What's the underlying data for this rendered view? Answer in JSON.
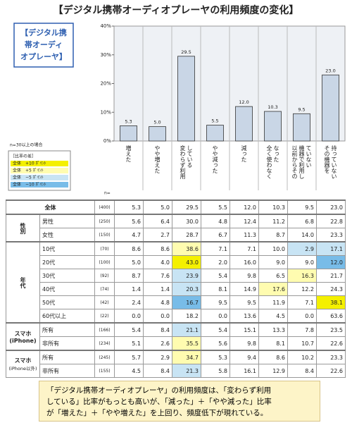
{
  "chart_data": {
    "type": "bar",
    "title": "【デジタル携帯オーディオプレーヤの利用頻度の変化】",
    "box_label": [
      "【デジタル携",
      "帯オーディ",
      "オプレーヤ】"
    ],
    "categories": [
      [
        "増えた"
      ],
      [
        "やや増えた"
      ],
      [
        "変わらず利用",
        "している"
      ],
      [
        "やや減った"
      ],
      [
        "減った"
      ],
      [
        "全く使わなく",
        "なった"
      ],
      [
        "以前からその",
        "機器で利用し",
        "ていない"
      ],
      [
        "その機器を",
        "持っていない"
      ]
    ],
    "values": [
      5.3,
      5.0,
      29.5,
      5.5,
      12.0,
      10.3,
      9.5,
      23.0
    ],
    "value_labels": [
      "5.3",
      "5.0",
      "29.5",
      "5.5",
      "12.0",
      "10.3",
      "9.5",
      "23.0"
    ],
    "color": "#c9d6e6",
    "ylim": [
      0,
      40
    ],
    "yticks": [
      {
        "value": 0,
        "label": "0%"
      },
      {
        "value": 10,
        "label": "10%"
      },
      {
        "value": 20,
        "label": "20%"
      },
      {
        "value": 30,
        "label": "30%"
      },
      {
        "value": 40,
        "label": "40%"
      }
    ],
    "n_label": "n=",
    "legend": {
      "note": "n=30以上の場合",
      "title": "［比率の差］",
      "items": [
        {
          "label": "全体　+10 ﾎﾟｲﾝﾄ",
          "color": "#f4f000"
        },
        {
          "label": "全体　+5 ﾎﾟｲﾝﾄ",
          "color": "#fffcb0"
        },
        {
          "label": "全体　−5 ﾎﾟｲﾝﾄ",
          "color": "#c8e4f4"
        },
        {
          "label": "全体　−10 ﾎﾟｲﾝﾄ",
          "color": "#78bce8"
        }
      ]
    }
  },
  "table": {
    "groups": [
      {
        "label": [
          "全体"
        ],
        "rows": [
          {
            "n": "(400)",
            "values": [
              "5.3",
              "5.0",
              "29.5",
              "5.5",
              "12.0",
              "10.3",
              "9.5",
              "23.0"
            ]
          }
        ]
      },
      {
        "label": [
          "性別"
        ],
        "rows": [
          {
            "label": "男性",
            "n": "(250)",
            "values": [
              "5.6",
              "6.4",
              "30.0",
              "4.8",
              "12.4",
              "11.2",
              "6.8",
              "22.8"
            ]
          },
          {
            "label": "女性",
            "n": "(150)",
            "values": [
              "4.7",
              "2.7",
              "28.7",
              "6.7",
              "11.3",
              "8.7",
              "14.0",
              "23.3"
            ]
          }
        ]
      },
      {
        "label": [
          "年代"
        ],
        "rows": [
          {
            "label": "10代",
            "n": "(70)",
            "values": [
              "8.6",
              "8.6",
              "38.6",
              "7.1",
              "7.1",
              "10.0",
              "2.9",
              "17.1"
            ],
            "highlight": [
              null,
              null,
              "#fffcb0",
              null,
              null,
              null,
              "#c8e4f4",
              "#c8e4f4"
            ]
          },
          {
            "label": "20代",
            "n": "(100)",
            "values": [
              "5.0",
              "4.0",
              "43.0",
              "2.0",
              "16.0",
              "9.0",
              "9.0",
              "12.0"
            ],
            "highlight": [
              null,
              null,
              "#f4f000",
              null,
              null,
              null,
              null,
              "#78bce8"
            ]
          },
          {
            "label": "30代",
            "n": "(92)",
            "values": [
              "8.7",
              "7.6",
              "23.9",
              "5.4",
              "9.8",
              "6.5",
              "16.3",
              "21.7"
            ],
            "highlight": [
              null,
              null,
              "#c8e4f4",
              null,
              null,
              null,
              "#fffcb0",
              null
            ]
          },
          {
            "label": "40代",
            "n": "(74)",
            "values": [
              "1.4",
              "1.4",
              "20.3",
              "8.1",
              "14.9",
              "17.6",
              "12.2",
              "24.3"
            ],
            "highlight": [
              null,
              null,
              "#c8e4f4",
              null,
              null,
              "#fffcb0",
              null,
              null
            ]
          },
          {
            "label": "50代",
            "n": "(42)",
            "values": [
              "2.4",
              "4.8",
              "16.7",
              "9.5",
              "9.5",
              "11.9",
              "7.1",
              "38.1"
            ],
            "highlight": [
              null,
              null,
              "#78bce8",
              null,
              null,
              null,
              null,
              "#f4f000"
            ]
          },
          {
            "label": "60代以上",
            "n": "(22)",
            "values": [
              "0.0",
              "0.0",
              "18.2",
              "0.0",
              "13.6",
              "4.5",
              "0.0",
              "63.6"
            ]
          }
        ]
      },
      {
        "label": [
          "スマホ(iPhone)"
        ],
        "rows": [
          {
            "label": "所有",
            "n": "(166)",
            "values": [
              "5.4",
              "8.4",
              "21.1",
              "5.4",
              "15.1",
              "13.3",
              "7.8",
              "23.5"
            ],
            "highlight": [
              null,
              null,
              "#c8e4f4",
              null,
              null,
              null,
              null,
              null
            ]
          },
          {
            "label": "非所有",
            "n": "(234)",
            "values": [
              "5.1",
              "2.6",
              "35.5",
              "5.6",
              "9.8",
              "8.1",
              "10.7",
              "22.6"
            ],
            "highlight": [
              null,
              null,
              "#fffcb0",
              null,
              null,
              null,
              null,
              null
            ]
          }
        ]
      },
      {
        "label": [
          "スマホ",
          "(iPhone以外)"
        ],
        "rows": [
          {
            "label": "所有",
            "n": "(245)",
            "values": [
              "5.7",
              "2.9",
              "34.7",
              "5.3",
              "9.4",
              "8.6",
              "10.2",
              "23.3"
            ],
            "highlight": [
              null,
              null,
              "#fffcb0",
              null,
              null,
              null,
              null,
              null
            ]
          },
          {
            "label": "非所有",
            "n": "(155)",
            "values": [
              "4.5",
              "8.4",
              "21.3",
              "5.8",
              "16.1",
              "12.9",
              "8.4",
              "22.6"
            ],
            "highlight": [
              null,
              null,
              "#c8e4f4",
              null,
              null,
              null,
              null,
              null
            ]
          }
        ]
      }
    ]
  },
  "note": [
    "「デジタル携帯オーディオプレーヤ」の利用頻度は、「変わらず利用",
    "している」比率がもっとも高いが、「減った」＋「やや減った」比率",
    "が「増えた」＋「やや増えた」を上回り、頻度低下が現れている。"
  ]
}
